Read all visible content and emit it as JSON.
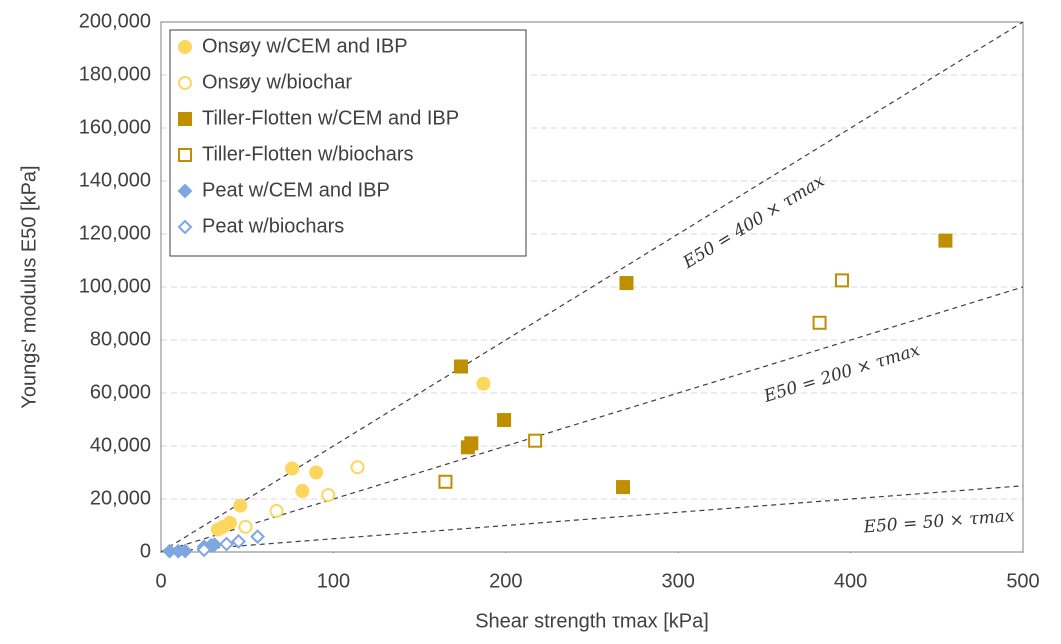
{
  "chart_data": {
    "type": "scatter",
    "x_label": "Shear strength τmax [kPa]",
    "y_label": "Youngs' modulus E50 [kPa]",
    "xlim": [
      0,
      500
    ],
    "xticks": [
      0,
      100,
      200,
      300,
      400,
      500
    ],
    "ylim": [
      0,
      200000
    ],
    "yticks": [
      0,
      {
        "value": 20000,
        "label": "20,000"
      },
      {
        "value": 40000,
        "label": "40,000"
      },
      {
        "value": 60000,
        "label": "60,000"
      },
      {
        "value": 80000,
        "label": "80,000"
      },
      {
        "value": 100000,
        "label": "100,000"
      },
      {
        "value": 120000,
        "label": "120,000"
      },
      {
        "value": 140000,
        "label": "140,000"
      },
      {
        "value": 160000,
        "label": "160,000"
      },
      {
        "value": 180000,
        "label": "180,000"
      },
      {
        "value": 200000,
        "label": "200,000"
      }
    ],
    "grid": true,
    "legend": "upper left",
    "reference_lines": [
      {
        "label": "E50 = 400 × τmax",
        "slope": 400
      },
      {
        "label": "E50 = 200 × τmax",
        "slope": 200
      },
      {
        "label": "E50 = 50 × τmax",
        "slope": 50
      }
    ],
    "series": [
      {
        "name": "Onsøy w/CEM and IBP",
        "color": "#ffd65c",
        "marker": "circle",
        "filled": true,
        "x": [
          33,
          36,
          40,
          46,
          76,
          82,
          90,
          187
        ],
        "values": [
          8500,
          9500,
          11000,
          17500,
          31500,
          23000,
          30000,
          63500
        ]
      },
      {
        "name": "Onsøy w/biochar",
        "color": "#ffd65c",
        "marker": "circle",
        "filled": false,
        "x": [
          49,
          67,
          97,
          114
        ],
        "values": [
          9500,
          15500,
          21500,
          32000
        ]
      },
      {
        "name": "Tiller-Flotten w/CEM and IBP",
        "color": "#bf8f00",
        "marker": "square",
        "filled": true,
        "x": [
          174,
          178,
          180,
          199,
          270,
          268,
          455
        ],
        "values": [
          70000,
          39500,
          41000,
          49800,
          101500,
          24500,
          117500
        ]
      },
      {
        "name": "Tiller-Flotten w/biochars",
        "color": "#bf8f00",
        "marker": "square",
        "filled": false,
        "x": [
          165,
          217,
          382,
          395
        ],
        "values": [
          26500,
          42000,
          86500,
          102500
        ]
      },
      {
        "name": "Peat w/CEM and IBP",
        "color": "#7ea6e0",
        "marker": "diamond",
        "filled": true,
        "x": [
          5,
          10,
          14,
          25,
          29,
          31
        ],
        "values": [
          300,
          300,
          400,
          2000,
          2500,
          2800
        ]
      },
      {
        "name": "Peat w/biochars",
        "color": "#7ea6e0",
        "marker": "diamond",
        "filled": false,
        "x": [
          25,
          38,
          45,
          56
        ],
        "values": [
          800,
          3000,
          4000,
          5800
        ]
      }
    ]
  }
}
